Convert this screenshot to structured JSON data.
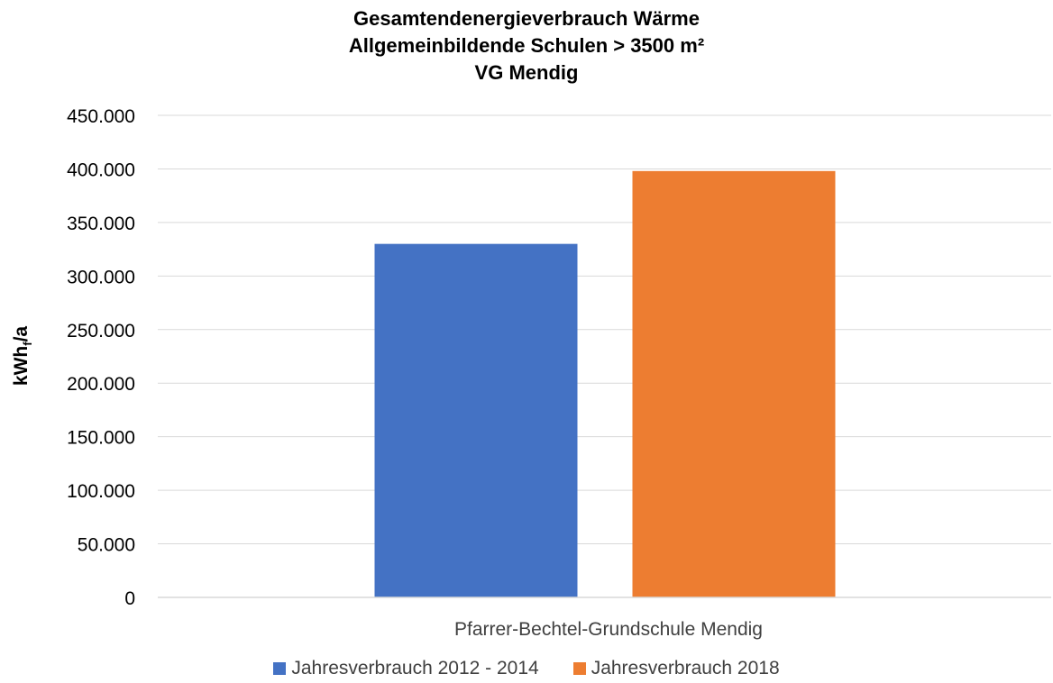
{
  "chart_data": {
    "type": "bar",
    "title": [
      "Gesamtendenergieverbrauch Wärme",
      "Allgemeinbildende Schulen > 3500 m²",
      "VG Mendig"
    ],
    "ylabel_main": "kWh",
    "ylabel_sub": "f",
    "ylabel_tail": "/a",
    "ylim": [
      0,
      450000
    ],
    "yticks": [
      "0",
      "50.000",
      "100.000",
      "150.000",
      "200.000",
      "250.000",
      "300.000",
      "350.000",
      "400.000",
      "450.000"
    ],
    "categories": [
      "Pfarrer-Bechtel-Grundschule Mendig"
    ],
    "series": [
      {
        "name": "Jahresverbrauch 2012 - 2014",
        "color": "#4472C4",
        "values": [
          330000
        ]
      },
      {
        "name": "Jahresverbrauch 2018",
        "color": "#ED7D31",
        "values": [
          398000
        ]
      }
    ],
    "grid": true,
    "legend_position": "bottom"
  }
}
